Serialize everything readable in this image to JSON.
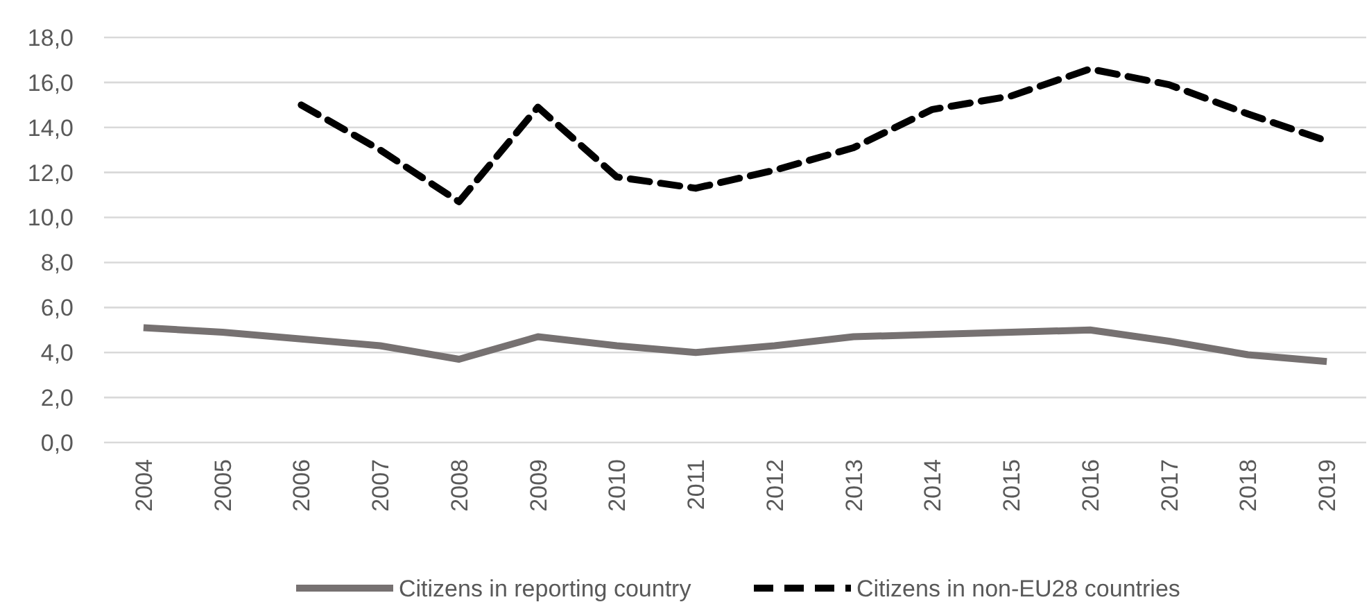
{
  "chart_data": {
    "type": "line",
    "categories": [
      "2004",
      "2005",
      "2006",
      "2007",
      "2008",
      "2009",
      "2010",
      "2011",
      "2012",
      "2013",
      "2014",
      "2015",
      "2016",
      "2017",
      "2018",
      "2019"
    ],
    "series": [
      {
        "name": "Citizens in reporting country",
        "color": "#767171",
        "line_style": "solid",
        "values": [
          5.1,
          4.9,
          4.6,
          4.3,
          3.7,
          4.7,
          4.3,
          4.0,
          4.3,
          4.7,
          4.8,
          4.9,
          5.0,
          4.5,
          3.9,
          3.6
        ]
      },
      {
        "name": "Citizens in non-EU28 countries",
        "color": "#000000",
        "line_style": "dashed",
        "values": [
          null,
          null,
          15.0,
          13.0,
          10.7,
          14.9,
          11.8,
          11.3,
          12.1,
          13.1,
          14.8,
          15.4,
          16.6,
          15.9,
          14.6,
          13.4
        ]
      }
    ],
    "ylim": [
      0,
      18
    ],
    "yticks": [
      {
        "value": 0,
        "label": "0,0"
      },
      {
        "value": 2,
        "label": "2,0"
      },
      {
        "value": 4,
        "label": "4,0"
      },
      {
        "value": 6,
        "label": "6,0"
      },
      {
        "value": 8,
        "label": "8,0"
      },
      {
        "value": 10,
        "label": "10,0"
      },
      {
        "value": 12,
        "label": "12,0"
      },
      {
        "value": 14,
        "label": "14,0"
      },
      {
        "value": 16,
        "label": "16,0"
      },
      {
        "value": 18,
        "label": "18,0"
      }
    ],
    "grid": "y",
    "legend": "bottom",
    "marker": "none"
  }
}
